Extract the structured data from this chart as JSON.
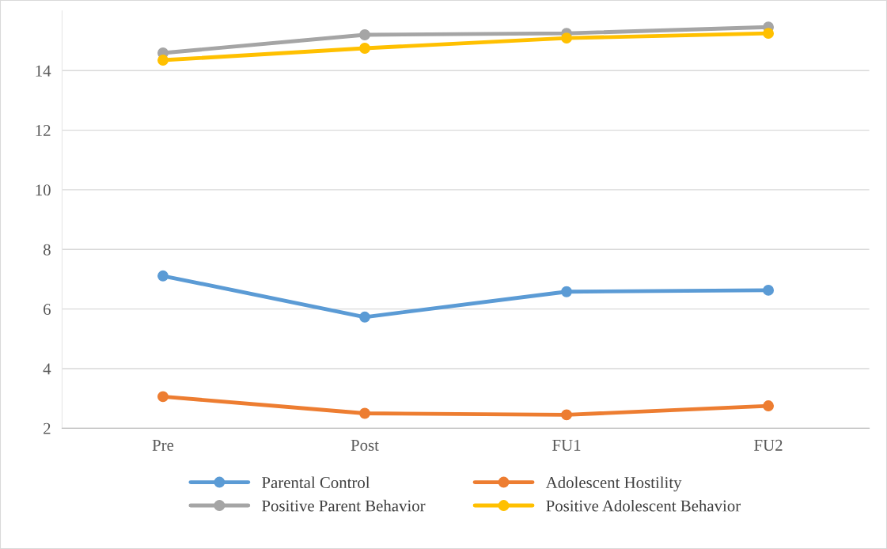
{
  "chart_data": {
    "type": "line",
    "categories": [
      "Pre",
      "Post",
      "FU1",
      "FU2"
    ],
    "series": [
      {
        "name": "Parental Control",
        "color": "#5b9bd5",
        "values": [
          7.11,
          5.73,
          6.58,
          6.63
        ]
      },
      {
        "name": "Adolescent Hostility",
        "color": "#ed7d31",
        "values": [
          3.06,
          2.5,
          2.45,
          2.75
        ]
      },
      {
        "name": "Positive Parent Behavior",
        "color": "#a5a5a5",
        "values": [
          14.59,
          15.2,
          15.25,
          15.46
        ]
      },
      {
        "name": "Positive Adolescent Behavior",
        "color": "#ffc000",
        "values": [
          14.35,
          14.75,
          15.09,
          15.25
        ]
      }
    ],
    "ylim": [
      2,
      16
    ],
    "yticks": [
      2,
      4,
      6,
      8,
      10,
      12,
      14
    ],
    "grid": "y",
    "legend": "bottom",
    "marker": "circle",
    "line_style": "solid"
  }
}
